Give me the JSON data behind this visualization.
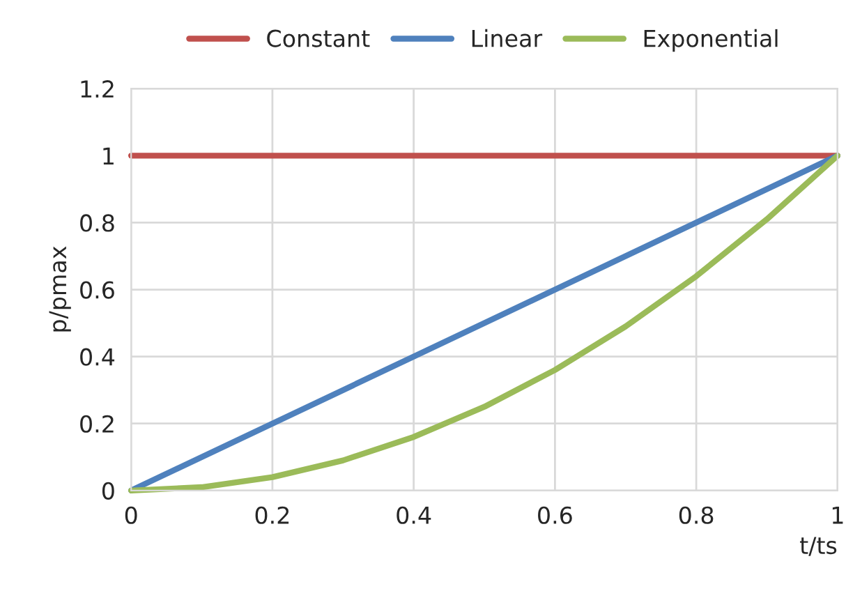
{
  "chart_data": {
    "type": "line",
    "xlabel": "t/ts",
    "ylabel": "p/pmax",
    "xlim": [
      0,
      1
    ],
    "ylim": [
      0,
      1.2
    ],
    "xticks": [
      0,
      0.2,
      0.4,
      0.6,
      0.8,
      1
    ],
    "yticks": [
      0,
      0.2,
      0.4,
      0.6,
      0.8,
      1,
      1.2
    ],
    "grid": true,
    "legend": "top",
    "marker": "none",
    "line_style": "solid",
    "series": [
      {
        "name": "Constant",
        "color": "#c0504d",
        "x": [
          0,
          1
        ],
        "values": [
          1,
          1
        ]
      },
      {
        "name": "Linear",
        "color": "#4f81bd",
        "x": [
          0,
          1
        ],
        "values": [
          0,
          1
        ]
      },
      {
        "name": "Exponential",
        "color": "#9bbb59",
        "x": [
          0,
          0.1,
          0.2,
          0.3,
          0.4,
          0.5,
          0.6,
          0.7,
          0.8,
          0.9,
          1
        ],
        "values": [
          0,
          0.01,
          0.04,
          0.09,
          0.16,
          0.25,
          0.36,
          0.49,
          0.64,
          0.81,
          1
        ]
      }
    ]
  }
}
